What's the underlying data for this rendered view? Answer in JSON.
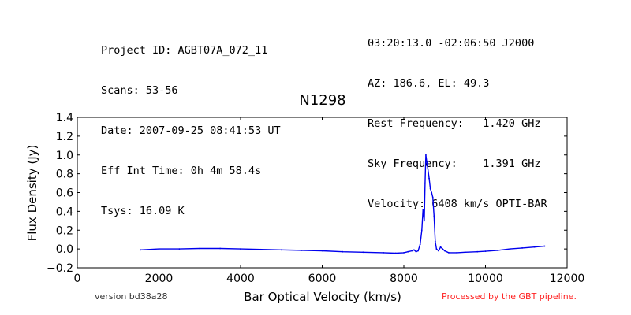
{
  "header": {
    "left": [
      "Project ID: AGBT07A_072_11",
      "Scans: 53-56",
      "Date: 2007-09-25 08:41:53 UT",
      "Eff Int Time: 0h 4m 58.4s",
      "Tsys: 16.09 K"
    ],
    "right": [
      "03:20:13.0 -02:06:50 J2000",
      "AZ: 186.6, EL: 49.3",
      "Rest Frequency:   1.420 GHz",
      "Sky Frequency:    1.391 GHz",
      "Velocity: 6408 km/s OPTI-BAR"
    ]
  },
  "footer": {
    "version": "version bd38a28",
    "processed": "Processed by the GBT pipeline."
  },
  "colors": {
    "series": "#0000ee",
    "processed_text": "#ff2222"
  },
  "chart_data": {
    "type": "line",
    "title": "N1298",
    "xlabel": "Bar Optical Velocity (km/s)",
    "ylabel": "Flux Density (Jy)",
    "xlim": [
      0,
      12000
    ],
    "ylim": [
      -0.2,
      1.4
    ],
    "xticks": [
      0,
      2000,
      4000,
      6000,
      8000,
      10000,
      12000
    ],
    "yticks": [
      -0.2,
      0.0,
      0.2,
      0.4,
      0.6,
      0.8,
      1.0,
      1.2,
      1.4
    ],
    "ytick_labels": [
      "−0.2",
      "0.0",
      "0.2",
      "0.4",
      "0.6",
      "0.8",
      "1.0",
      "1.2",
      "1.4"
    ],
    "grid": false,
    "series": [
      {
        "x": [
          1550,
          2000,
          2500,
          3000,
          3500,
          4000,
          4500,
          5000,
          5500,
          6000,
          6500,
          7000,
          7500,
          7800,
          8000,
          8100,
          8200,
          8250,
          8300,
          8350,
          8400,
          8440,
          8470,
          8500,
          8520,
          8540,
          8560,
          8590,
          8620,
          8650,
          8680,
          8710,
          8740,
          8770,
          8800,
          8850,
          8900,
          8950,
          9000,
          9100,
          9300,
          9500,
          9800,
          10000,
          10300,
          10600,
          10900,
          11200,
          11450
        ],
        "y": [
          -0.01,
          0.0,
          0.0,
          0.005,
          0.005,
          0.0,
          -0.005,
          -0.01,
          -0.015,
          -0.02,
          -0.03,
          -0.035,
          -0.04,
          -0.045,
          -0.04,
          -0.03,
          -0.02,
          -0.01,
          -0.03,
          -0.02,
          0.05,
          0.2,
          0.42,
          0.3,
          0.7,
          1.0,
          0.93,
          0.85,
          0.75,
          0.64,
          0.6,
          0.55,
          0.35,
          0.08,
          0.0,
          -0.02,
          0.02,
          0.0,
          -0.02,
          -0.04,
          -0.04,
          -0.035,
          -0.03,
          -0.025,
          -0.015,
          0.0,
          0.01,
          0.02,
          0.03
        ]
      }
    ]
  }
}
